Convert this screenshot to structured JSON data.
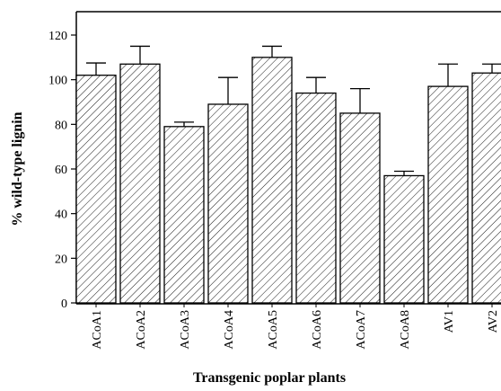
{
  "chart_data": {
    "type": "bar",
    "x_label": "Transgenic poplar plants",
    "y_label": "% wild-type lignin",
    "categories": [
      "ACoA1",
      "ACoA2",
      "ACoA3",
      "ACoA4",
      "ACoA5",
      "ACoA6",
      "ACoA7",
      "ACoA8",
      "AV1",
      "AV2"
    ],
    "values": [
      102,
      107,
      79,
      89,
      110,
      94,
      85,
      57,
      97,
      103
    ],
    "errors": [
      5.5,
      8,
      2,
      12,
      5,
      7,
      11,
      2,
      10,
      4
    ],
    "color": "#000000",
    "ylim": [
      0,
      120
    ],
    "yticks": [
      0,
      20,
      40,
      60,
      80,
      100,
      120
    ],
    "grid": false
  }
}
